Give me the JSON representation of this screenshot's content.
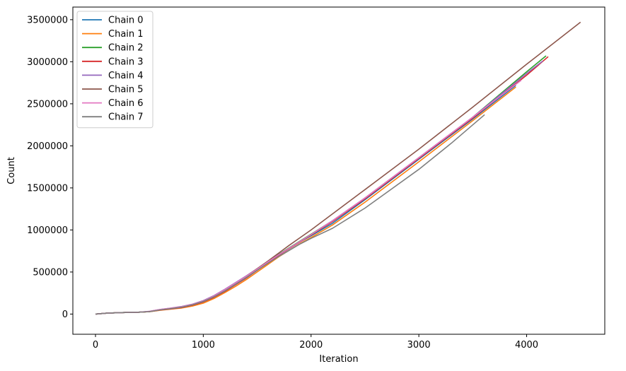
{
  "chart_data": {
    "type": "line",
    "title": "",
    "xlabel": "Iteration",
    "ylabel": "Count",
    "xlim": [
      -210,
      4725
    ],
    "ylim": [
      -240000,
      3650000
    ],
    "xticks": [
      0,
      1000,
      2000,
      3000,
      4000
    ],
    "yticks": [
      0,
      500000,
      1000000,
      1500000,
      2000000,
      2500000,
      3000000,
      3500000
    ],
    "grid": false,
    "legend_position": "top-left",
    "series": [
      {
        "name": "Chain 0",
        "color": "#1f77b4",
        "x": [
          0,
          100,
          200,
          300,
          400,
          500,
          600,
          700,
          800,
          900,
          1000,
          1100,
          1200,
          1300,
          1400,
          1500,
          1600,
          1700,
          1800,
          1900,
          2000,
          2200,
          2500,
          3000,
          3500,
          3900
        ],
        "y": [
          0,
          10000,
          15000,
          20000,
          22000,
          30000,
          50000,
          65000,
          80000,
          105000,
          145000,
          200000,
          270000,
          350000,
          430000,
          520000,
          610000,
          700000,
          780000,
          860000,
          930000,
          1080000,
          1360000,
          1840000,
          2320000,
          2720000
        ]
      },
      {
        "name": "Chain 1",
        "color": "#ff7f0e",
        "x": [
          0,
          100,
          200,
          300,
          400,
          500,
          600,
          700,
          800,
          900,
          1000,
          1100,
          1200,
          1300,
          1400,
          1500,
          1600,
          1700,
          1800,
          1900,
          2000,
          2200,
          2500,
          3000,
          3500,
          3900
        ],
        "y": [
          0,
          10000,
          15000,
          20000,
          22000,
          28000,
          45000,
          58000,
          72000,
          95000,
          130000,
          185000,
          255000,
          330000,
          410000,
          500000,
          590000,
          680000,
          760000,
          840000,
          910000,
          1060000,
          1330000,
          1810000,
          2300000,
          2700000
        ]
      },
      {
        "name": "Chain 2",
        "color": "#2ca02c",
        "x": [
          0,
          100,
          200,
          300,
          400,
          500,
          600,
          700,
          800,
          900,
          1000,
          1100,
          1200,
          1300,
          1400,
          1500,
          1600,
          1700,
          1800,
          1900,
          2000,
          2200,
          2500,
          3000,
          3500,
          4000,
          4180
        ],
        "y": [
          0,
          10000,
          15000,
          20000,
          22000,
          30000,
          50000,
          65000,
          82000,
          110000,
          150000,
          210000,
          280000,
          360000,
          440000,
          530000,
          620000,
          710000,
          790000,
          870000,
          950000,
          1110000,
          1380000,
          1860000,
          2340000,
          2880000,
          3070000
        ]
      },
      {
        "name": "Chain 3",
        "color": "#d62728",
        "x": [
          0,
          100,
          200,
          300,
          400,
          500,
          600,
          700,
          800,
          900,
          1000,
          1100,
          1200,
          1300,
          1400,
          1500,
          1600,
          1700,
          1800,
          1900,
          2000,
          2200,
          2500,
          3000,
          3500,
          4000,
          4200
        ],
        "y": [
          0,
          10000,
          15000,
          20000,
          22000,
          30000,
          48000,
          62000,
          78000,
          105000,
          145000,
          200000,
          270000,
          350000,
          430000,
          520000,
          610000,
          700000,
          780000,
          860000,
          940000,
          1100000,
          1370000,
          1850000,
          2330000,
          2840000,
          3060000
        ]
      },
      {
        "name": "Chain 4",
        "color": "#9467bd",
        "x": [
          0,
          100,
          200,
          300,
          400,
          500,
          600,
          700,
          800,
          900,
          1000,
          1100,
          1200,
          1300,
          1400,
          1500,
          1600,
          1700,
          1800,
          1900,
          2000,
          2200,
          2500,
          3000,
          3500,
          4000,
          4150
        ],
        "y": [
          0,
          10000,
          15000,
          20000,
          22000,
          32000,
          55000,
          72000,
          90000,
          118000,
          160000,
          220000,
          295000,
          375000,
          455000,
          540000,
          625000,
          705000,
          785000,
          865000,
          945000,
          1110000,
          1380000,
          1860000,
          2340000,
          2860000,
          3010000
        ]
      },
      {
        "name": "Chain 5",
        "color": "#8c564b",
        "x": [
          0,
          100,
          200,
          300,
          400,
          500,
          600,
          700,
          800,
          900,
          1000,
          1100,
          1200,
          1300,
          1400,
          1500,
          1600,
          1700,
          1800,
          1900,
          2000,
          2500,
          3000,
          3500,
          4000,
          4500
        ],
        "y": [
          0,
          10000,
          15000,
          20000,
          22000,
          30000,
          50000,
          65000,
          82000,
          110000,
          150000,
          210000,
          285000,
          365000,
          450000,
          540000,
          630000,
          725000,
          820000,
          910000,
          1000000,
          1480000,
          1960000,
          2460000,
          2970000,
          3470000
        ]
      },
      {
        "name": "Chain 6",
        "color": "#e377c2",
        "x": [
          0,
          100,
          200,
          300,
          400,
          500,
          600,
          700,
          800,
          900,
          1000,
          1100,
          1200,
          1300,
          1400,
          1500,
          1600,
          1700,
          1800,
          1900,
          2000,
          2200,
          2500,
          3000,
          3500,
          3950
        ],
        "y": [
          0,
          10000,
          15000,
          20000,
          22000,
          32000,
          55000,
          70000,
          88000,
          115000,
          155000,
          215000,
          290000,
          370000,
          450000,
          535000,
          620000,
          705000,
          785000,
          865000,
          945000,
          1110000,
          1380000,
          1860000,
          2340000,
          2780000
        ]
      },
      {
        "name": "Chain 7",
        "color": "#7f7f7f",
        "x": [
          0,
          100,
          200,
          300,
          400,
          500,
          600,
          700,
          800,
          900,
          1000,
          1100,
          1200,
          1300,
          1400,
          1500,
          1600,
          1700,
          1800,
          1900,
          2000,
          2200,
          2500,
          3000,
          3300,
          3610
        ],
        "y": [
          0,
          10000,
          15000,
          20000,
          22000,
          30000,
          50000,
          65000,
          82000,
          110000,
          150000,
          205000,
          275000,
          355000,
          435000,
          520000,
          605000,
          685000,
          760000,
          835000,
          900000,
          1020000,
          1260000,
          1720000,
          2030000,
          2370000
        ]
      }
    ]
  }
}
